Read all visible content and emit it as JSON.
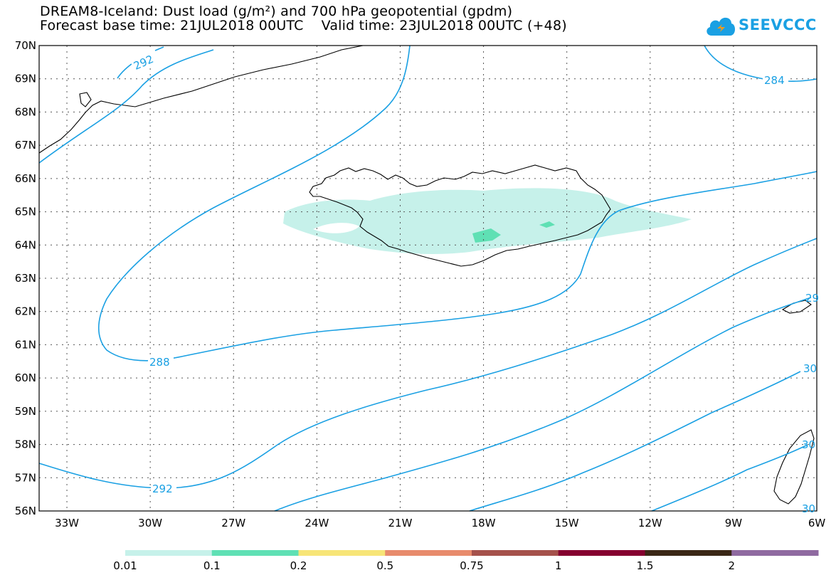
{
  "title": {
    "line1": "DREAM8-Iceland: Dust load (g/m²) and 700 hPa geopotential (gpdm)",
    "line2": "Forecast base time: 21JUL2018 00UTC    Valid time: 23JUL2018 00UTC (+48)"
  },
  "logo": {
    "text": "SEEVCCC",
    "icon": "cloud-icon",
    "color": "#1aa0e3"
  },
  "map": {
    "lat_labels": [
      "70N",
      "69N",
      "68N",
      "67N",
      "66N",
      "65N",
      "64N",
      "63N",
      "62N",
      "61N",
      "60N",
      "59N",
      "58N",
      "57N",
      "56N"
    ],
    "lon_labels": [
      "33W",
      "30W",
      "27W",
      "24W",
      "21W",
      "18W",
      "15W",
      "12W",
      "9W",
      "6W"
    ],
    "contour_labels": [
      "292",
      "284",
      "288",
      "292",
      "29",
      "30",
      "30",
      "30"
    ],
    "contour_color": "#1aa0e3"
  },
  "legend": {
    "colors": [
      "#c6f1ea",
      "#5fe0b4",
      "#f7e577",
      "#e88b6c",
      "#a5514b",
      "#85002f",
      "#3a2716",
      "#8f6aa0"
    ],
    "labels": [
      "0.01",
      "0.1",
      "0.2",
      "0.5",
      "0.75",
      "1",
      "1.5",
      "2"
    ]
  }
}
